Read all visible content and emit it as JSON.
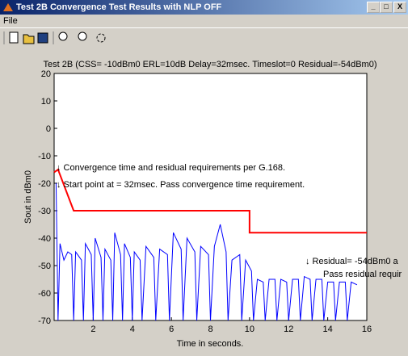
{
  "window": {
    "title": "Test 2B Convergence Test Results with NLP OFF",
    "menu": [
      "File"
    ]
  },
  "chart_data": {
    "type": "line",
    "title": "Test 2B (CSS= -10dBm0 ERL=10dB Delay=32msec. Timeslot=0 Residual=-54dBm0)",
    "xlabel": "Time in seconds.",
    "ylabel": "Sout in dBm0",
    "xlim": [
      0,
      16
    ],
    "ylim": [
      -70,
      20
    ],
    "xticks": [
      2,
      4,
      6,
      8,
      10,
      12,
      14,
      16
    ],
    "yticks": [
      -70,
      -60,
      -50,
      -40,
      -30,
      -20,
      -10,
      0,
      10,
      20
    ],
    "series": [
      {
        "color": "#0000ff",
        "x": [
          0.1,
          0.2,
          0.3,
          0.5,
          0.7,
          0.9,
          1.0,
          1.1,
          1.4,
          1.5,
          1.6,
          1.9,
          2.0,
          2.1,
          2.4,
          2.5,
          2.6,
          2.9,
          3.0,
          3.1,
          3.4,
          3.5,
          3.6,
          3.9,
          4.0,
          4.1,
          4.4,
          4.5,
          4.7,
          5.1,
          5.2,
          5.4,
          5.8,
          5.9,
          6.1,
          6.5,
          6.6,
          6.8,
          7.2,
          7.3,
          7.5,
          7.9,
          8.0,
          8.2,
          8.5,
          8.8,
          8.9,
          9.1,
          9.5,
          9.6,
          9.8,
          10.1,
          10.2,
          10.4,
          10.7,
          10.8,
          11.0,
          11.3,
          11.4,
          11.6,
          11.9,
          12.0,
          12.2,
          12.5,
          12.6,
          12.8,
          13.1,
          13.2,
          13.4,
          13.7,
          13.8,
          14.0,
          14.3,
          14.4,
          14.6,
          14.9,
          15.0,
          15.2,
          15.5
        ],
        "values": [
          -20,
          -70,
          -42,
          -48,
          -45,
          -46,
          -70,
          -45,
          -48,
          -70,
          -42,
          -46,
          -70,
          -40,
          -47,
          -70,
          -44,
          -48,
          -70,
          -38,
          -46,
          -70,
          -42,
          -47,
          -70,
          -45,
          -48,
          -70,
          -43,
          -47,
          -70,
          -44,
          -46,
          -70,
          -38,
          -44,
          -70,
          -40,
          -45,
          -70,
          -43,
          -46,
          -70,
          -43,
          -35,
          -45,
          -70,
          -48,
          -46,
          -70,
          -48,
          -52,
          -70,
          -55,
          -56,
          -70,
          -55,
          -55,
          -70,
          -55,
          -56,
          -70,
          -55,
          -55,
          -70,
          -54,
          -55,
          -70,
          -55,
          -55,
          -70,
          -56,
          -56,
          -70,
          -56,
          -56,
          -70,
          -56,
          -57
        ]
      },
      {
        "color": "#ff0000",
        "x": [
          0,
          0.2,
          1,
          10,
          10,
          16
        ],
        "values": [
          -16,
          -15,
          -30,
          -30,
          -38,
          -38
        ]
      }
    ],
    "annotations": [
      "↓ Convergence time and residual requirements per G.168.",
      "↓ Start point at = 32msec.  Pass convergence time requirement.",
      "↓ Residual=  -54dBm0 a",
      "Pass residual requir"
    ]
  }
}
